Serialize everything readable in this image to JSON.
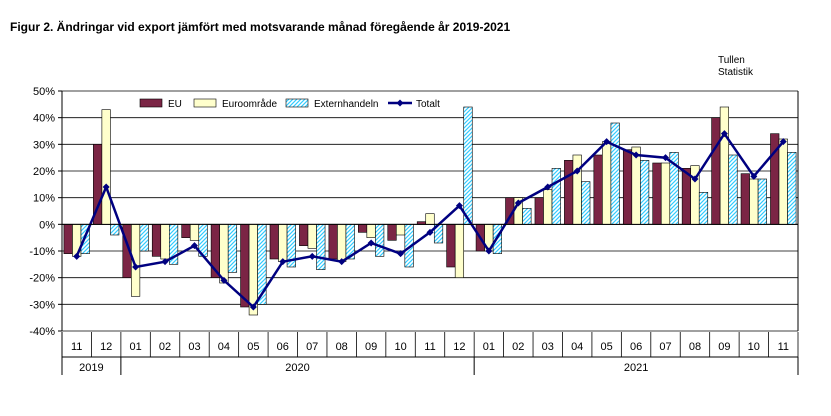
{
  "title": "Figur  2. Ändringar vid  export jämfört med motsvarande månad föregående år 2019-2021",
  "source": {
    "line1": "Tullen",
    "line2": "Statistik"
  },
  "chart_data": {
    "type": "bar",
    "categories": [
      "11",
      "12",
      "01",
      "02",
      "03",
      "04",
      "05",
      "06",
      "07",
      "08",
      "09",
      "10",
      "11",
      "12",
      "01",
      "02",
      "03",
      "04",
      "05",
      "06",
      "07",
      "08",
      "09",
      "10",
      "11"
    ],
    "years": [
      {
        "label": "2019",
        "span": 2
      },
      {
        "label": "2020",
        "span": 12
      },
      {
        "label": "2021",
        "span": 11
      }
    ],
    "yticks": [
      "-40%",
      "-30%",
      "-20%",
      "-10%",
      "0%",
      "10%",
      "20%",
      "30%",
      "40%",
      "50%"
    ],
    "ylim": [
      -40,
      50
    ],
    "grid": true,
    "legend_position": "top-left",
    "series": [
      {
        "name": "EU",
        "type": "bar",
        "color": "#7b2545",
        "values": [
          -11,
          30,
          -20,
          -12,
          -5,
          -20,
          -31,
          -13,
          -8,
          -13,
          -3,
          -6,
          1,
          -16,
          -10,
          10,
          10,
          24,
          26,
          28,
          23,
          21,
          40,
          19,
          34
        ]
      },
      {
        "name": "Euroområde",
        "type": "bar",
        "color": "#ffffcc",
        "values": [
          -12,
          43,
          -27,
          -13,
          -6,
          -22,
          -34,
          -14,
          -9,
          -14,
          -5,
          -4,
          4,
          -20,
          -10,
          10,
          13,
          26,
          31,
          29,
          23,
          22,
          44,
          17,
          32
        ]
      },
      {
        "name": "Externhandeln",
        "type": "bar",
        "color": "#33ccff",
        "values": [
          -11,
          -4,
          -10,
          -15,
          -12,
          -18,
          -30,
          -16,
          -17,
          -13,
          -12,
          -16,
          -7,
          44,
          -11,
          6,
          21,
          16,
          38,
          24,
          27,
          12,
          26,
          17,
          27
        ]
      },
      {
        "name": "Totalt",
        "type": "line",
        "color": "#000080",
        "values": [
          -12,
          14,
          -16,
          -14,
          -8,
          -21,
          -31,
          -14,
          -12,
          -14,
          -7,
          -11,
          -3,
          7,
          -10,
          8,
          14,
          20,
          31,
          26,
          25,
          17,
          34,
          18,
          31
        ]
      }
    ]
  }
}
